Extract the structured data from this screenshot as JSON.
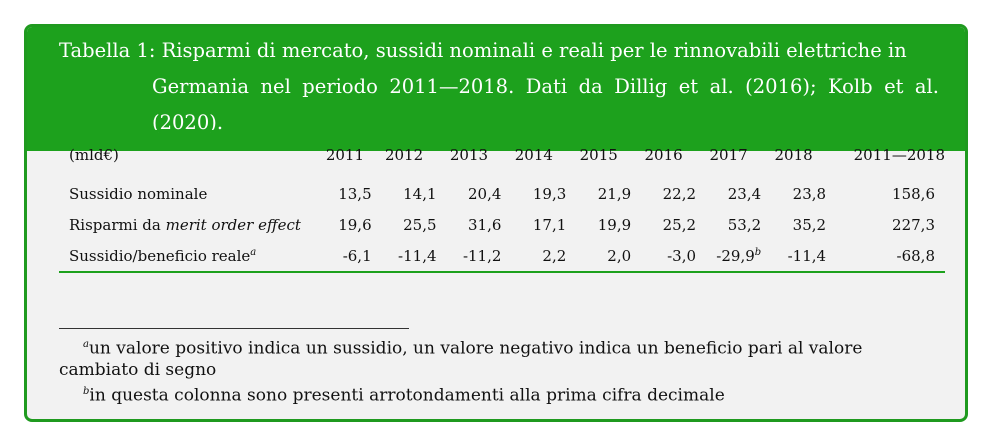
{
  "caption": {
    "label": "Tabella 1:",
    "line1": "Risparmi di mercato, sussidi nominali e reali per le rinnovabili elettriche in",
    "line2": "Germania nel periodo 2011—2018. Dati da Dillig et al. (2016); Kolb et al. (2020)."
  },
  "table": {
    "unit_header": "(mld€)",
    "years": [
      "2011",
      "2012",
      "2013",
      "2014",
      "2015",
      "2016",
      "2017",
      "2018",
      "2011—2018"
    ],
    "rows": [
      {
        "label": "Sussidio nominale",
        "label_italic": "",
        "label_sup": "",
        "values": [
          "13,5",
          "14,1",
          "20,4",
          "19,3",
          "21,9",
          "22,2",
          "23,4",
          "23,8",
          "158,6"
        ]
      },
      {
        "label": "Risparmi da ",
        "label_italic": "merit order effect",
        "label_sup": "",
        "values": [
          "19,6",
          "25,5",
          "31,6",
          "17,1",
          "19,9",
          "25,2",
          "53,2",
          "35,2",
          "227,3"
        ]
      },
      {
        "label": "Sussidio/beneficio reale",
        "label_italic": "",
        "label_sup": "a",
        "values": [
          "-6,1",
          "-11,4",
          "-11,2",
          "2,2",
          "2,0",
          "-3,0",
          "-29,9",
          "-11,4",
          "-68,8"
        ],
        "value_sup_2017": "b"
      }
    ]
  },
  "footnotes": [
    {
      "mark": "a",
      "text": "un valore positivo indica un sussidio, un valore negativo indica un beneficio pari al valore cambiato di segno"
    },
    {
      "mark": "b",
      "text": "in questa colonna sono presenti arrotondamenti alla prima cifra decimale"
    }
  ],
  "colors": {
    "accent": "#1da11d",
    "panel": "#f2f2f2",
    "caption_text": "#ffffff"
  }
}
